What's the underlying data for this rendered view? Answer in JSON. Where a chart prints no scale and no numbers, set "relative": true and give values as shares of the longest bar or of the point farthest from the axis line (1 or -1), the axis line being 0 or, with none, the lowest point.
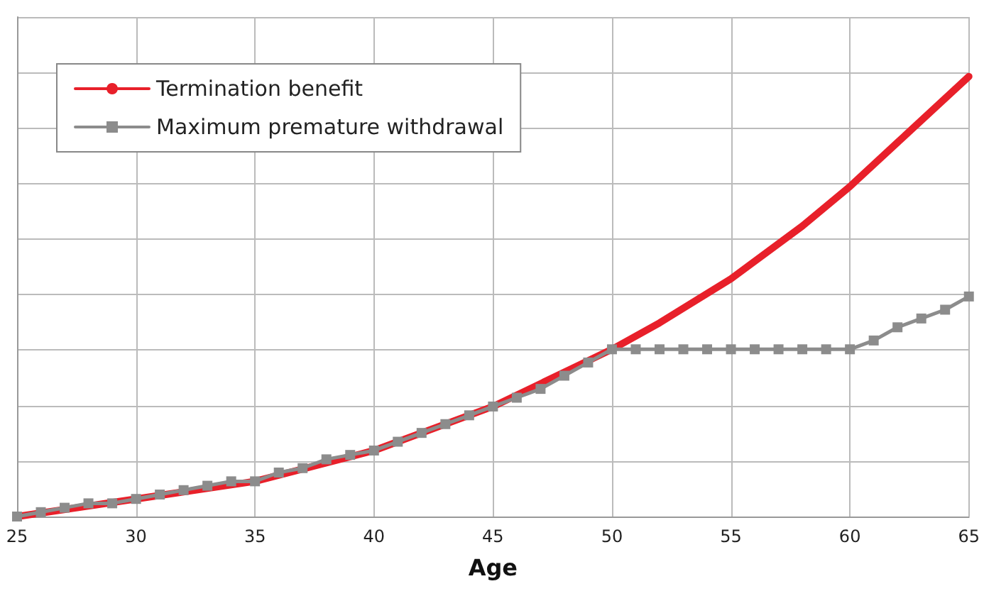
{
  "chart_data": {
    "type": "line",
    "xlabel": "Age",
    "relative": true,
    "grid": true,
    "legend": "top left",
    "line_style": "solid",
    "xlim": [
      25,
      65
    ],
    "xticks": [
      25,
      30,
      35,
      40,
      45,
      50,
      55,
      60,
      65
    ],
    "series": [
      {
        "name": "Termination benefit",
        "color": "#e8202a",
        "marker": "none",
        "x": [
          25,
          30,
          35,
          40,
          45,
          50,
          52,
          55,
          58,
          60,
          62,
          65
        ],
        "values": [
          0,
          0.04,
          0.08,
          0.15,
          0.25,
          0.38,
          0.44,
          0.54,
          0.66,
          0.75,
          0.85,
          1
        ]
      },
      {
        "name": "Maximum premature withdrawal",
        "color": "#8c8c8c",
        "marker": "square",
        "x": [
          25,
          26,
          27,
          28,
          29,
          30,
          31,
          32,
          33,
          34,
          35,
          36,
          37,
          38,
          39,
          40,
          41,
          42,
          43,
          44,
          45,
          46,
          47,
          48,
          49,
          50,
          51,
          52,
          53,
          54,
          55,
          56,
          57,
          58,
          59,
          60,
          61,
          62,
          63,
          64,
          65
        ],
        "values": [
          0,
          0.01,
          0.02,
          0.03,
          0.03,
          0.04,
          0.05,
          0.06,
          0.07,
          0.08,
          0.08,
          0.1,
          0.11,
          0.13,
          0.14,
          0.15,
          0.17,
          0.19,
          0.21,
          0.23,
          0.25,
          0.27,
          0.29,
          0.32,
          0.35,
          0.38,
          0.38,
          0.38,
          0.38,
          0.38,
          0.38,
          0.38,
          0.38,
          0.38,
          0.38,
          0.38,
          0.4,
          0.43,
          0.45,
          0.47,
          0.5
        ]
      }
    ]
  }
}
